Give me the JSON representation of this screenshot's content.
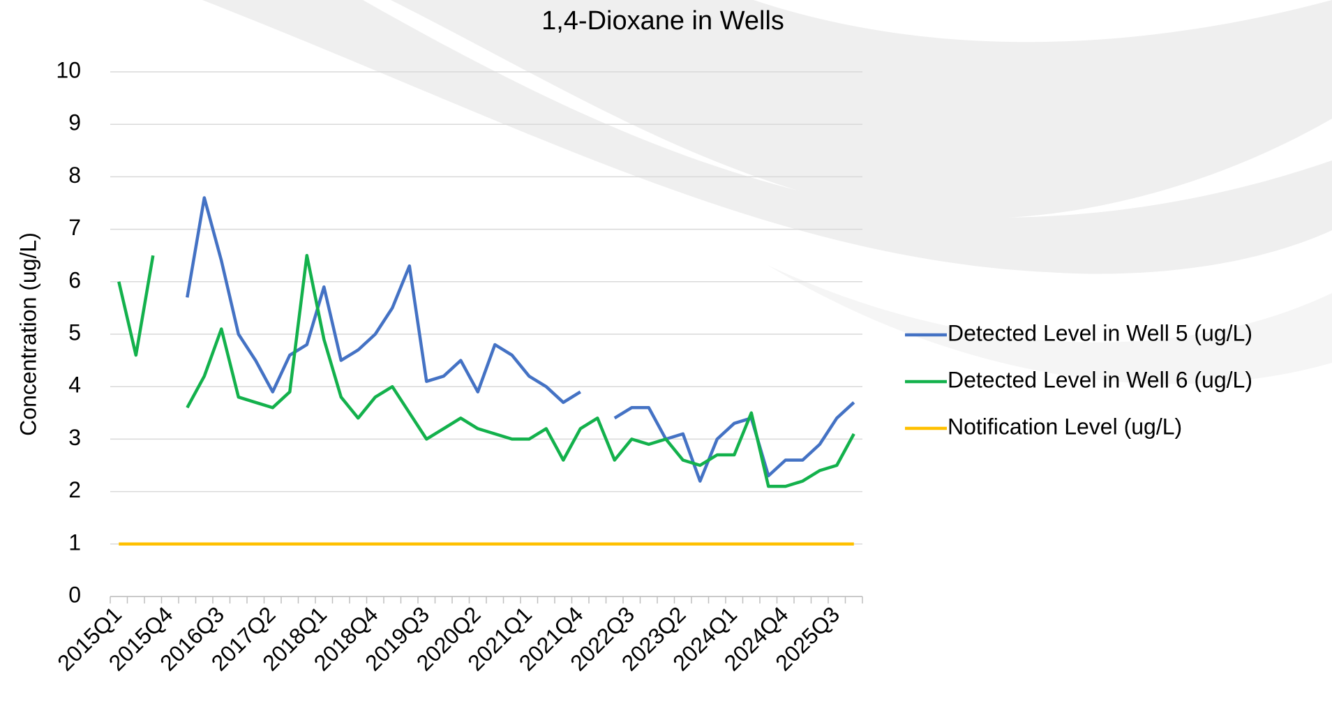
{
  "chart_data": {
    "type": "line",
    "title": "1,4-Dioxane in Wells",
    "y_label": "Concentration (ug/L)",
    "categories": [
      "2015Q1",
      null,
      null,
      "2015Q4",
      null,
      null,
      "2016Q3",
      null,
      null,
      "2017Q2",
      null,
      null,
      "2018Q1",
      null,
      null,
      "2018Q4",
      null,
      null,
      "2019Q3",
      null,
      null,
      "2020Q2",
      null,
      null,
      "2021Q1",
      null,
      null,
      "2021Q4",
      null,
      null,
      "2022Q3",
      null,
      null,
      "2023Q2",
      null,
      null,
      "2024Q1",
      null,
      null,
      "2024Q4",
      null,
      null,
      "2025Q3",
      null
    ],
    "series": [
      {
        "name": "Detected Level in Well 5 (ug/L)",
        "color": "#4472c4",
        "values": [
          null,
          null,
          null,
          null,
          5.7,
          7.6,
          6.4,
          5.0,
          4.5,
          3.9,
          4.6,
          4.8,
          5.9,
          4.5,
          4.7,
          5.0,
          5.5,
          6.3,
          4.1,
          4.2,
          4.5,
          3.9,
          4.8,
          4.6,
          4.2,
          4.0,
          3.7,
          3.9,
          null,
          3.4,
          3.6,
          3.6,
          3.0,
          3.1,
          2.2,
          3.0,
          3.3,
          3.4,
          2.3,
          2.6,
          2.6,
          2.9,
          3.4,
          3.7
        ]
      },
      {
        "name": "Detected Level in Well 6 (ug/L)",
        "color": "#13b14c",
        "values": [
          6.0,
          4.6,
          6.5,
          null,
          3.6,
          4.2,
          5.1,
          3.8,
          3.7,
          3.6,
          3.9,
          6.5,
          4.9,
          3.8,
          3.4,
          3.8,
          4.0,
          3.5,
          3.0,
          3.2,
          3.4,
          3.2,
          3.1,
          3.0,
          3.0,
          3.2,
          2.6,
          3.2,
          3.4,
          2.6,
          3.0,
          2.9,
          3.0,
          2.6,
          2.5,
          2.7,
          2.7,
          3.5,
          2.1,
          2.1,
          2.2,
          2.4,
          2.5,
          3.1
        ]
      },
      {
        "name": "Notification Level (ug/L)",
        "color": "#ffc000",
        "values": [
          1,
          1,
          1,
          1,
          1,
          1,
          1,
          1,
          1,
          1,
          1,
          1,
          1,
          1,
          1,
          1,
          1,
          1,
          1,
          1,
          1,
          1,
          1,
          1,
          1,
          1,
          1,
          1,
          1,
          1,
          1,
          1,
          1,
          1,
          1,
          1,
          1,
          1,
          1,
          1,
          1,
          1,
          1,
          1
        ]
      }
    ],
    "ylim": [
      0,
      10
    ],
    "yticks": [
      0,
      1,
      2,
      3,
      4,
      5,
      6,
      7,
      8,
      9,
      10
    ],
    "grid": true,
    "legend": "right"
  }
}
